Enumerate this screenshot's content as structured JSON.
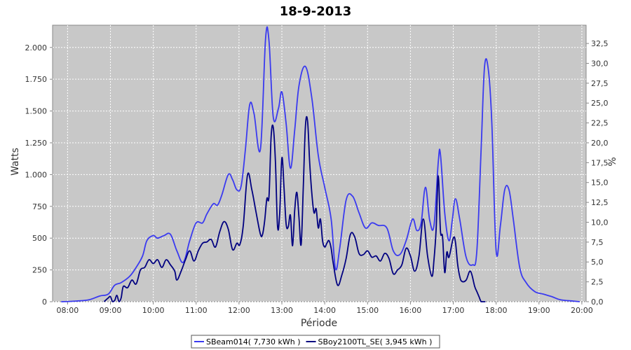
{
  "chart_data": {
    "type": "line",
    "title": "18-9-2013",
    "xlabel": "Période",
    "ylabel": "Watts",
    "y2label": "%",
    "xlim": [
      7.65,
      20.1
    ],
    "ylim": [
      0,
      2175
    ],
    "y2lim": [
      0,
      34.8
    ],
    "grid": true,
    "legend_position": "bottom",
    "x_ticks": [
      8,
      9,
      10,
      11,
      12,
      13,
      14,
      15,
      16,
      17,
      18,
      19,
      20
    ],
    "x_tick_labels": [
      "08:00",
      "09:00",
      "10:00",
      "11:00",
      "12:00",
      "13:00",
      "14:00",
      "15:00",
      "16:00",
      "17:00",
      "18:00",
      "19:00",
      "20:00"
    ],
    "y_ticks": [
      0,
      250,
      500,
      750,
      1000,
      1250,
      1500,
      1750,
      2000
    ],
    "y_tick_labels": [
      "0",
      "250",
      "500",
      "750",
      "1.000",
      "1.250",
      "1.500",
      "1.750",
      "2.000"
    ],
    "y2_ticks": [
      0,
      2.5,
      5,
      7.5,
      10,
      12.5,
      15,
      17.5,
      20,
      22.5,
      25,
      27.5,
      30,
      32.5
    ],
    "y2_tick_labels": [
      "0,0",
      "2,5",
      "5,0",
      "7,5",
      "10,0",
      "12,5",
      "15,0",
      "17,5",
      "20,0",
      "22,5",
      "25,0",
      "27,5",
      "30,0",
      "32,5"
    ],
    "series": [
      {
        "name": "SBeam014( 7,730 kWh )",
        "color": "#3a3af0",
        "x": [
          7.85,
          8.2,
          8.5,
          8.75,
          8.95,
          9.1,
          9.25,
          9.45,
          9.6,
          9.75,
          9.85,
          10.0,
          10.1,
          10.25,
          10.4,
          10.55,
          10.7,
          10.85,
          11.0,
          11.15,
          11.25,
          11.4,
          11.5,
          11.6,
          11.75,
          11.85,
          11.95,
          12.05,
          12.15,
          12.25,
          12.35,
          12.5,
          12.62,
          12.7,
          12.8,
          12.92,
          13.0,
          13.1,
          13.2,
          13.3,
          13.4,
          13.55,
          13.7,
          13.85,
          14.0,
          14.15,
          14.25,
          14.35,
          14.5,
          14.65,
          14.8,
          14.95,
          15.1,
          15.25,
          15.45,
          15.6,
          15.75,
          15.9,
          16.05,
          16.15,
          16.25,
          16.35,
          16.45,
          16.55,
          16.65,
          16.7,
          16.8,
          16.9,
          16.98,
          17.05,
          17.15,
          17.3,
          17.45,
          17.55,
          17.65,
          17.73,
          17.82,
          17.9,
          18.0,
          18.1,
          18.2,
          18.3,
          18.4,
          18.55,
          18.7,
          18.9,
          19.1,
          19.3,
          19.5,
          19.8,
          19.95
        ],
        "y": [
          0,
          5,
          15,
          45,
          60,
          130,
          150,
          200,
          270,
          360,
          480,
          520,
          500,
          520,
          530,
          400,
          310,
          480,
          620,
          620,
          690,
          770,
          760,
          840,
          1000,
          960,
          880,
          910,
          1200,
          1550,
          1480,
          1200,
          2070,
          2050,
          1450,
          1520,
          1650,
          1400,
          1050,
          1350,
          1700,
          1850,
          1600,
          1150,
          900,
          650,
          260,
          420,
          800,
          830,
          700,
          580,
          620,
          600,
          580,
          400,
          370,
          480,
          650,
          560,
          620,
          900,
          640,
          600,
          1100,
          1160,
          700,
          480,
          650,
          810,
          650,
          350,
          290,
          400,
          1200,
          1850,
          1820,
          1400,
          400,
          600,
          880,
          880,
          650,
          270,
          150,
          80,
          60,
          40,
          15,
          5,
          0
        ]
      },
      {
        "name": "SBoy2100TL_SE( 3,945 kWh )",
        "color": "#000080",
        "x": [
          8.85,
          8.95,
          9.0,
          9.05,
          9.1,
          9.15,
          9.2,
          9.25,
          9.3,
          9.4,
          9.5,
          9.6,
          9.7,
          9.8,
          9.9,
          10.0,
          10.1,
          10.2,
          10.3,
          10.4,
          10.5,
          10.55,
          10.65,
          10.75,
          10.85,
          10.95,
          11.05,
          11.15,
          11.25,
          11.35,
          11.45,
          11.55,
          11.65,
          11.75,
          11.85,
          11.95,
          12.02,
          12.1,
          12.2,
          12.3,
          12.4,
          12.5,
          12.55,
          12.6,
          12.65,
          12.7,
          12.75,
          12.8,
          12.85,
          12.9,
          12.95,
          13.0,
          13.05,
          13.1,
          13.15,
          13.2,
          13.25,
          13.3,
          13.35,
          13.4,
          13.45,
          13.5,
          13.55,
          13.6,
          13.65,
          13.7,
          13.75,
          13.8,
          13.85,
          13.9,
          13.95,
          14.0,
          14.05,
          14.1,
          14.15,
          14.2,
          14.3,
          14.4,
          14.5,
          14.6,
          14.7,
          14.8,
          14.9,
          15.0,
          15.1,
          15.2,
          15.3,
          15.4,
          15.5,
          15.6,
          15.7,
          15.8,
          15.9,
          16.0,
          16.1,
          16.2,
          16.3,
          16.4,
          16.5,
          16.55,
          16.6,
          16.65,
          16.7,
          16.75,
          16.8,
          16.85,
          16.9,
          17.0,
          17.05,
          17.1,
          17.15,
          17.2,
          17.3,
          17.4,
          17.5,
          17.55,
          17.6,
          17.65,
          17.7,
          17.75
        ],
        "y": [
          0,
          30,
          40,
          0,
          10,
          50,
          0,
          30,
          120,
          110,
          170,
          140,
          250,
          270,
          330,
          300,
          330,
          270,
          330,
          290,
          240,
          170,
          240,
          330,
          400,
          320,
          400,
          460,
          470,
          490,
          430,
          550,
          630,
          570,
          410,
          460,
          450,
          600,
          1000,
          880,
          700,
          530,
          530,
          640,
          810,
          830,
          1300,
          1370,
          1100,
          590,
          700,
          1130,
          900,
          610,
          590,
          680,
          440,
          720,
          860,
          660,
          450,
          900,
          1380,
          1420,
          1090,
          850,
          700,
          730,
          580,
          650,
          480,
          430,
          460,
          480,
          420,
          300,
          130,
          210,
          340,
          530,
          510,
          380,
          370,
          400,
          350,
          360,
          320,
          380,
          340,
          220,
          250,
          290,
          420,
          360,
          240,
          360,
          650,
          360,
          200,
          330,
          570,
          990,
          560,
          510,
          230,
          390,
          350,
          500,
          470,
          300,
          200,
          160,
          170,
          240,
          120,
          80,
          40,
          0,
          0,
          0
        ]
      }
    ]
  }
}
